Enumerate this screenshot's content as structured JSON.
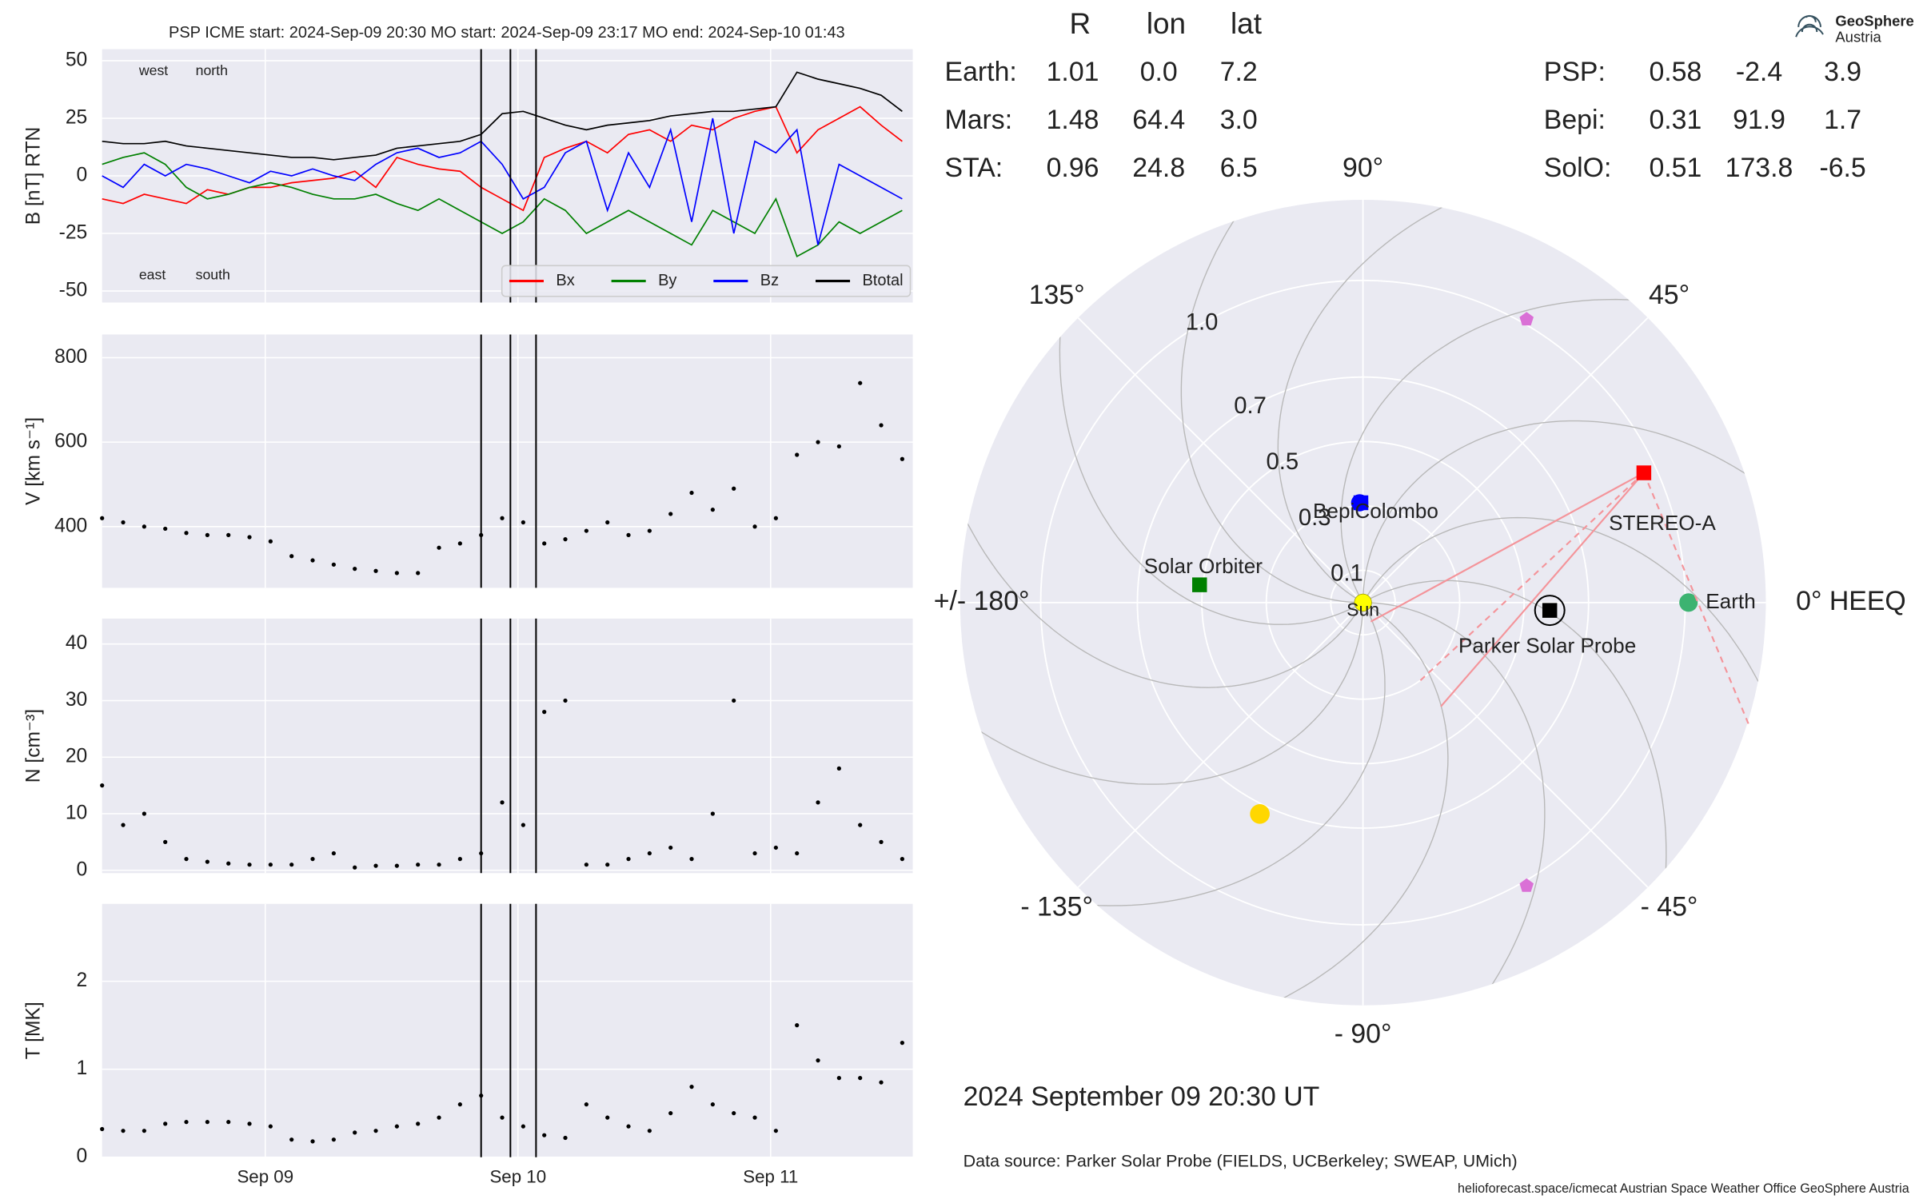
{
  "chart_data": [
    {
      "type": "line",
      "title": "PSP    ICME start: 2024-Sep-09 20:30   MO start: 2024-Sep-09 23:17   MO end: 2024-Sep-10 01:43",
      "ylabel": "B [nT] RTN",
      "x": [
        "2024-09-08T08:30",
        "2024-09-08T10:30",
        "2024-09-08T12:30",
        "2024-09-08T14:30",
        "2024-09-08T16:30",
        "2024-09-08T18:30",
        "2024-09-08T20:30",
        "2024-09-08T22:30",
        "2024-09-09T00:30",
        "2024-09-09T02:30",
        "2024-09-09T04:30",
        "2024-09-09T06:30",
        "2024-09-09T08:30",
        "2024-09-09T10:30",
        "2024-09-09T12:30",
        "2024-09-09T14:30",
        "2024-09-09T16:30",
        "2024-09-09T18:30",
        "2024-09-09T20:30",
        "2024-09-09T22:30",
        "2024-09-10T00:30",
        "2024-09-10T02:30",
        "2024-09-10T04:30",
        "2024-09-10T06:30",
        "2024-09-10T08:30",
        "2024-09-10T10:30",
        "2024-09-10T12:30",
        "2024-09-10T14:30",
        "2024-09-10T16:30",
        "2024-09-10T18:30",
        "2024-09-10T20:30",
        "2024-09-10T22:30",
        "2024-09-11T00:30",
        "2024-09-11T02:30",
        "2024-09-11T04:30",
        "2024-09-11T06:30",
        "2024-09-11T08:30",
        "2024-09-11T10:30",
        "2024-09-11T12:30"
      ],
      "xlim": [
        "2024-09-08T08:30",
        "2024-09-11T13:30"
      ],
      "xticks": [
        "2024-09-09T00:00",
        "2024-09-10T00:00",
        "2024-09-11T00:00"
      ],
      "ylim": [
        -55,
        55
      ],
      "yticks": [
        -50,
        -25,
        0,
        25,
        50
      ],
      "grid": true,
      "vlines": [
        "2024-09-09T20:30",
        "2024-09-09T23:17",
        "2024-09-10T01:43"
      ],
      "legend": "lower right",
      "series": [
        {
          "name": "Bx",
          "color": "#ff0000",
          "values": [
            -10,
            -12,
            -8,
            -10,
            -12,
            -6,
            -8,
            -5,
            -5,
            -3,
            -2,
            -1,
            2,
            -5,
            8,
            5,
            3,
            2,
            -5,
            -10,
            -15,
            8,
            12,
            15,
            10,
            18,
            20,
            15,
            22,
            20,
            25,
            28,
            30,
            10,
            20,
            25,
            30,
            22,
            15
          ]
        },
        {
          "name": "By",
          "color": "#008000",
          "values": [
            5,
            8,
            10,
            5,
            -5,
            -10,
            -8,
            -5,
            -3,
            -5,
            -8,
            -10,
            -10,
            -8,
            -12,
            -15,
            -10,
            -15,
            -20,
            -25,
            -20,
            -10,
            -15,
            -25,
            -20,
            -15,
            -20,
            -25,
            -30,
            -15,
            -20,
            -25,
            -10,
            -35,
            -30,
            -20,
            -25,
            -20,
            -15
          ]
        },
        {
          "name": "Bz",
          "color": "#0000ff",
          "values": [
            0,
            -5,
            5,
            0,
            5,
            3,
            0,
            -3,
            2,
            0,
            3,
            0,
            -2,
            5,
            10,
            12,
            8,
            10,
            15,
            5,
            -10,
            -5,
            10,
            15,
            -15,
            10,
            -5,
            20,
            -20,
            25,
            -25,
            15,
            10,
            20,
            -30,
            5,
            0,
            -5,
            -10
          ]
        },
        {
          "name": "Btotal",
          "color": "#000000",
          "values": [
            15,
            14,
            14,
            15,
            13,
            12,
            11,
            10,
            9,
            8,
            8,
            7,
            8,
            9,
            12,
            13,
            14,
            15,
            18,
            27,
            28,
            25,
            22,
            20,
            22,
            23,
            24,
            26,
            27,
            28,
            28,
            29,
            30,
            45,
            42,
            40,
            38,
            35,
            28
          ]
        }
      ],
      "annotations": [
        {
          "text": "west",
          "color": "#008000",
          "corner": "upper left"
        },
        {
          "text": "north",
          "color": "#0000ff",
          "corner": "upper left"
        },
        {
          "text": "east",
          "color": "#008000",
          "corner": "lower left"
        },
        {
          "text": "south",
          "color": "#0000ff",
          "corner": "lower left"
        }
      ]
    },
    {
      "type": "scatter",
      "ylabel": "V [km s⁻¹]",
      "x": [
        "2024-09-08T08:30",
        "2024-09-08T10:30",
        "2024-09-08T12:30",
        "2024-09-08T14:30",
        "2024-09-08T16:30",
        "2024-09-08T18:30",
        "2024-09-08T20:30",
        "2024-09-08T22:30",
        "2024-09-09T00:30",
        "2024-09-09T02:30",
        "2024-09-09T04:30",
        "2024-09-09T06:30",
        "2024-09-09T08:30",
        "2024-09-09T10:30",
        "2024-09-09T12:30",
        "2024-09-09T14:30",
        "2024-09-09T16:30",
        "2024-09-09T18:30",
        "2024-09-09T20:30",
        "2024-09-09T22:30",
        "2024-09-10T00:30",
        "2024-09-10T02:30",
        "2024-09-10T04:30",
        "2024-09-10T06:30",
        "2024-09-10T08:30",
        "2024-09-10T10:30",
        "2024-09-10T12:30",
        "2024-09-10T14:30",
        "2024-09-10T16:30",
        "2024-09-10T18:30",
        "2024-09-10T20:30",
        "2024-09-10T22:30",
        "2024-09-11T00:30",
        "2024-09-11T02:30",
        "2024-09-11T04:30",
        "2024-09-11T06:30",
        "2024-09-11T08:30",
        "2024-09-11T10:30",
        "2024-09-11T12:30"
      ],
      "xlim": [
        "2024-09-08T08:30",
        "2024-09-11T13:30"
      ],
      "xticks": [
        "2024-09-09T00:00",
        "2024-09-10T00:00",
        "2024-09-11T00:00"
      ],
      "ylim": [
        255,
        855
      ],
      "yticks": [
        400,
        600,
        800
      ],
      "grid": true,
      "color": "#000000",
      "values": [
        420,
        410,
        400,
        395,
        385,
        380,
        380,
        375,
        365,
        330,
        320,
        310,
        300,
        295,
        290,
        290,
        350,
        360,
        380,
        420,
        410,
        360,
        370,
        390,
        410,
        380,
        390,
        430,
        480,
        440,
        490,
        400,
        420,
        570,
        600,
        590,
        740,
        640,
        560
      ]
    },
    {
      "type": "scatter",
      "ylabel": "N [cm⁻³]",
      "x": [
        "2024-09-08T08:30",
        "2024-09-08T10:30",
        "2024-09-08T12:30",
        "2024-09-08T14:30",
        "2024-09-08T16:30",
        "2024-09-08T18:30",
        "2024-09-08T20:30",
        "2024-09-08T22:30",
        "2024-09-09T00:30",
        "2024-09-09T02:30",
        "2024-09-09T04:30",
        "2024-09-09T06:30",
        "2024-09-09T08:30",
        "2024-09-09T10:30",
        "2024-09-09T12:30",
        "2024-09-09T14:30",
        "2024-09-09T16:30",
        "2024-09-09T18:30",
        "2024-09-09T20:30",
        "2024-09-09T22:30",
        "2024-09-10T00:30",
        "2024-09-10T02:30",
        "2024-09-10T04:30",
        "2024-09-10T06:30",
        "2024-09-10T08:30",
        "2024-09-10T10:30",
        "2024-09-10T12:30",
        "2024-09-10T14:30",
        "2024-09-10T16:30",
        "2024-09-10T18:30",
        "2024-09-10T20:30",
        "2024-09-10T22:30",
        "2024-09-11T00:30",
        "2024-09-11T02:30",
        "2024-09-11T04:30",
        "2024-09-11T06:30",
        "2024-09-11T08:30",
        "2024-09-11T10:30",
        "2024-09-11T12:30"
      ],
      "xlim": [
        "2024-09-08T08:30",
        "2024-09-11T13:30"
      ],
      "xticks": [
        "2024-09-09T00:00",
        "2024-09-10T00:00",
        "2024-09-11T00:00"
      ],
      "ylim": [
        -0.5,
        44.5
      ],
      "yticks": [
        0,
        10,
        20,
        30,
        40
      ],
      "grid": true,
      "color": "#000000",
      "values": [
        15,
        8,
        10,
        5,
        2,
        1.5,
        1.2,
        1,
        1,
        1,
        2,
        3,
        0.5,
        0.8,
        0.8,
        1,
        1,
        2,
        3,
        12,
        8,
        28,
        30,
        1,
        1,
        2,
        3,
        4,
        2,
        10,
        30,
        3,
        4,
        3,
        12,
        18,
        8,
        5,
        2
      ]
    },
    {
      "type": "scatter",
      "ylabel": "T [MK]",
      "x": [
        "2024-09-08T08:30",
        "2024-09-08T10:30",
        "2024-09-08T12:30",
        "2024-09-08T14:30",
        "2024-09-08T16:30",
        "2024-09-08T18:30",
        "2024-09-08T20:30",
        "2024-09-08T22:30",
        "2024-09-09T00:30",
        "2024-09-09T02:30",
        "2024-09-09T04:30",
        "2024-09-09T06:30",
        "2024-09-09T08:30",
        "2024-09-09T10:30",
        "2024-09-09T12:30",
        "2024-09-09T14:30",
        "2024-09-09T16:30",
        "2024-09-09T18:30",
        "2024-09-09T20:30",
        "2024-09-09T22:30",
        "2024-09-10T00:30",
        "2024-09-10T02:30",
        "2024-09-10T04:30",
        "2024-09-10T06:30",
        "2024-09-10T08:30",
        "2024-09-10T10:30",
        "2024-09-10T12:30",
        "2024-09-10T14:30",
        "2024-09-10T16:30",
        "2024-09-10T18:30",
        "2024-09-10T20:30",
        "2024-09-10T22:30",
        "2024-09-11T00:30",
        "2024-09-11T02:30",
        "2024-09-11T04:30",
        "2024-09-11T06:30",
        "2024-09-11T08:30",
        "2024-09-11T10:30",
        "2024-09-11T12:30"
      ],
      "xlim": [
        "2024-09-08T08:30",
        "2024-09-11T13:30"
      ],
      "xticks": [
        {
          "value": "2024-09-09T00:00",
          "label": "Sep 09"
        },
        {
          "value": "2024-09-10T00:00",
          "label": "Sep 10"
        },
        {
          "value": "2024-09-11T00:00",
          "label": "Sep 11"
        }
      ],
      "ylim": [
        0,
        2.88
      ],
      "yticks": [
        0,
        1,
        2
      ],
      "grid": true,
      "color": "#000000",
      "values": [
        0.32,
        0.3,
        0.3,
        0.38,
        0.4,
        0.4,
        0.4,
        0.38,
        0.35,
        0.2,
        0.18,
        0.2,
        0.28,
        0.3,
        0.35,
        0.38,
        0.45,
        0.6,
        0.7,
        0.45,
        0.35,
        0.25,
        0.22,
        0.6,
        0.45,
        0.35,
        0.3,
        0.5,
        0.8,
        0.6,
        0.5,
        0.45,
        0.3,
        1.5,
        1.1,
        0.9,
        0.9,
        0.85,
        1.3
      ]
    },
    {
      "type": "polar",
      "rlim": [
        0,
        1.25
      ],
      "rticks": [
        0.1,
        0.3,
        0.5,
        0.7,
        {
          "value": 1,
          "label": "1.0"
        }
      ],
      "thetaticks": [
        {
          "value": 0,
          "label": "0° HEEQ"
        },
        {
          "value": 45,
          "label": "45°"
        },
        {
          "value": 90,
          "label": "90°"
        },
        {
          "value": 135,
          "label": "135°"
        },
        {
          "value": 180,
          "label": "+/- 180°"
        },
        {
          "value": -135,
          "label": "- 135°"
        },
        {
          "value": -90,
          "label": "- 90°"
        },
        {
          "value": -45,
          "label": "- 45°"
        }
      ],
      "grid": true,
      "sun": {
        "label": "Sun",
        "color": "#ffff00"
      },
      "table": {
        "columns": [
          "R",
          "lon",
          "lat"
        ],
        "rows": [
          {
            "name": "Earth:",
            "label": "Earth",
            "color": "#3cb371",
            "marker": "circle",
            "values": [
              1.01,
              0,
              7.2
            ],
            "value_labels": [
              "1.01",
              "0.0",
              "7.2"
            ]
          },
          {
            "name": "Mars:",
            "color": "#f2573f",
            "marker": "circle",
            "values": [
              1.48,
              64.4,
              3
            ],
            "value_labels": [
              "1.48",
              "64.4",
              "3.0"
            ]
          },
          {
            "name": "STA:",
            "label": "STEREO-A",
            "color": "#ff0000",
            "marker": "square",
            "values": [
              0.96,
              24.8,
              6.5
            ]
          },
          {
            "name": "PSP:",
            "label": "Parker Solar Probe",
            "color": "#000000",
            "marker": "ringed-square",
            "values": [
              0.58,
              -2.4,
              3.9
            ]
          },
          {
            "name": "Bepi:",
            "label": "BepiColombo",
            "color": "#0000ff",
            "marker": "circle-square",
            "values": [
              0.31,
              91.9,
              1.7
            ]
          },
          {
            "name": "SolO:",
            "label": "Solar Orbiter",
            "color": "#008000",
            "marker": "square",
            "values": [
              0.51,
              173.8,
              -6.5
            ]
          }
        ]
      },
      "markers": [
        {
          "r": 0.73,
          "theta": -116,
          "color": "#ffd700",
          "shape": "circle"
        },
        {
          "r": 1.015,
          "theta": 60,
          "color": "#da70d6",
          "shape": "pentagon"
        },
        {
          "r": 1.015,
          "theta": -60,
          "color": "#da70d6",
          "shape": "pentagon"
        }
      ],
      "date": "2024 September 09  20:30 UT"
    }
  ],
  "data_source": "Data source: Parker Solar Probe (FIELDS, UCBerkeley; SWEAP, UMich)",
  "footer": "helioforecast.space/icmecat   Austrian Space Weather Office   GeoSphere Austria",
  "logo": {
    "line1": "GeoSphere",
    "line2": "Austria"
  }
}
